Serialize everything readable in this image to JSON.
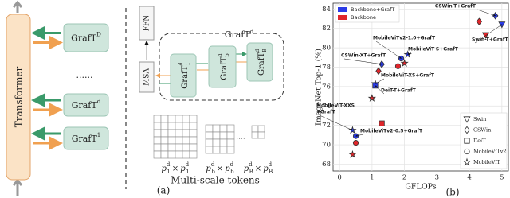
{
  "diagram": {
    "transformer": "Transformer",
    "stack": [
      {
        "base": "GrafT",
        "sup": "D"
      },
      {
        "base": "GrafT",
        "sup": "d"
      },
      {
        "base": "GrafT",
        "sup": "1"
      }
    ],
    "ellipsis": "......",
    "ffn": "FFN",
    "msa": "MSA",
    "group": {
      "base": "GrafT",
      "sup": "d"
    },
    "inner": [
      {
        "base": "GrafT",
        "sup": "d",
        "sub": "1"
      },
      {
        "base": "GrafT",
        "sup": "d",
        "sub": "b"
      },
      {
        "base": "GrafT",
        "sup": "d",
        "sub": "B"
      }
    ],
    "tokens": [
      {
        "p": "p",
        "sup": "d",
        "sub": "1"
      },
      {
        "p": "p",
        "sup": "d",
        "sub": "b"
      },
      {
        "p": "p",
        "sup": "d",
        "sub": "B"
      }
    ],
    "times": "×",
    "tokens_label": "Multi-scale tokens",
    "caption": "(a)"
  },
  "chart_data": {
    "type": "scatter",
    "xlabel": "GFLOPs",
    "ylabel": "ImageNet Top-1 (%)",
    "caption": "(b)",
    "xlim": [
      -0.2,
      5.2
    ],
    "ylim": [
      67.3,
      84.6
    ],
    "xticks": [
      0,
      1,
      2,
      3,
      4,
      5
    ],
    "yticks": [
      68,
      70,
      72,
      74,
      76,
      78,
      80,
      82,
      84
    ],
    "grid": true,
    "series": [
      {
        "name": "Backbone+GrafT",
        "color": "#2a3be6",
        "x": [
          4.8,
          5.0,
          1.9,
          2.1,
          1.3,
          1.1,
          1.1,
          0.4,
          0.5
        ],
        "y": [
          83.3,
          82.4,
          78.9,
          79.3,
          78.3,
          76.3,
          76.1,
          71.5,
          70.9
        ],
        "markers": [
          "diamond",
          "triangle-down",
          "circle",
          "star",
          "diamond",
          "star",
          "square",
          "star",
          "circle"
        ]
      },
      {
        "name": "Backbone",
        "color": "#e0262b",
        "x": [
          4.3,
          4.5,
          1.8,
          2.0,
          1.2,
          1.0,
          1.3,
          0.4,
          0.5
        ],
        "y": [
          82.7,
          81.3,
          78.1,
          78.4,
          77.6,
          74.8,
          72.2,
          69.0,
          70.2
        ],
        "markers": [
          "diamond",
          "triangle-down",
          "circle",
          "star",
          "diamond",
          "star",
          "square",
          "star",
          "circle"
        ]
      }
    ],
    "marker_legend": [
      {
        "name": "Swin",
        "marker": "triangle-down"
      },
      {
        "name": "CSWin",
        "marker": "diamond"
      },
      {
        "name": "DeiT",
        "marker": "square"
      },
      {
        "name": "MobileViTv2",
        "marker": "circle"
      },
      {
        "name": "MobileViT",
        "marker": "star"
      }
    ],
    "annotations": [
      [
        "CSWin-T+GrafT"
      ],
      [
        "Swin-T+GrafT"
      ],
      [
        "MobileViTv2-1.0+GrafT"
      ],
      [
        "MobileViT-S+GrafT"
      ],
      [
        "CSWin-XT+GrafT"
      ],
      [
        "MobileViT-XS+GrafT"
      ],
      [
        "DeiT-T+GrafT"
      ],
      [
        "MobileViT-XXS",
        "+GrafT"
      ],
      [
        "MobileViTv2-0.5+GrafT"
      ]
    ]
  }
}
